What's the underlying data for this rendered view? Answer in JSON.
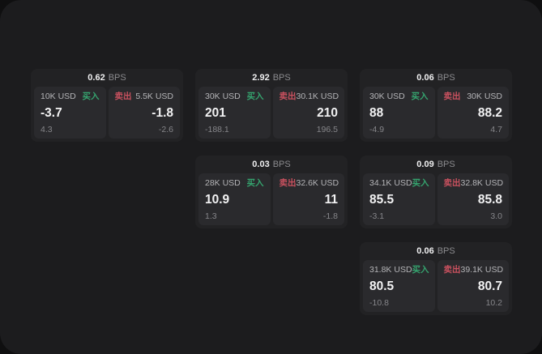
{
  "app": {
    "background_color": "#0f0f10",
    "panel_color": "#1c1c1e"
  },
  "labels": {
    "bps": "BPS",
    "buy": "买入",
    "sell": "卖出"
  },
  "colors": {
    "buy_green": "#35a36e",
    "sell_red": "#c9515f",
    "card_background": "#222224",
    "tile_background": "#2a2a2d"
  },
  "cards": [
    {
      "col": 1,
      "row": 1,
      "bps": "0.62",
      "buy": {
        "amount": "10K USD",
        "value": "-3.7",
        "sub": "4.3"
      },
      "sell": {
        "amount": "5.5K USD",
        "value": "-1.8",
        "sub": "-2.6"
      }
    },
    {
      "col": 2,
      "row": 1,
      "bps": "2.92",
      "buy": {
        "amount": "30K USD",
        "value": "201",
        "sub": "-188.1"
      },
      "sell": {
        "amount": "30.1K USD",
        "value": "210",
        "sub": "196.5"
      }
    },
    {
      "col": 3,
      "row": 1,
      "bps": "0.06",
      "buy": {
        "amount": "30K USD",
        "value": "88",
        "sub": "-4.9"
      },
      "sell": {
        "amount": "30K USD",
        "value": "88.2",
        "sub": "4.7"
      }
    },
    {
      "col": 2,
      "row": 2,
      "bps": "0.03",
      "buy": {
        "amount": "28K USD",
        "value": "10.9",
        "sub": "1.3"
      },
      "sell": {
        "amount": "32.6K USD",
        "value": "11",
        "sub": "-1.8"
      }
    },
    {
      "col": 3,
      "row": 2,
      "bps": "0.09",
      "buy": {
        "amount": "34.1K USD",
        "value": "85.5",
        "sub": "-3.1"
      },
      "sell": {
        "amount": "32.8K USD",
        "value": "85.8",
        "sub": "3.0"
      }
    },
    {
      "col": 3,
      "row": 3,
      "bps": "0.06",
      "buy": {
        "amount": "31.8K USD",
        "value": "80.5",
        "sub": "-10.8"
      },
      "sell": {
        "amount": "39.1K USD",
        "value": "80.7",
        "sub": "10.2"
      }
    }
  ]
}
